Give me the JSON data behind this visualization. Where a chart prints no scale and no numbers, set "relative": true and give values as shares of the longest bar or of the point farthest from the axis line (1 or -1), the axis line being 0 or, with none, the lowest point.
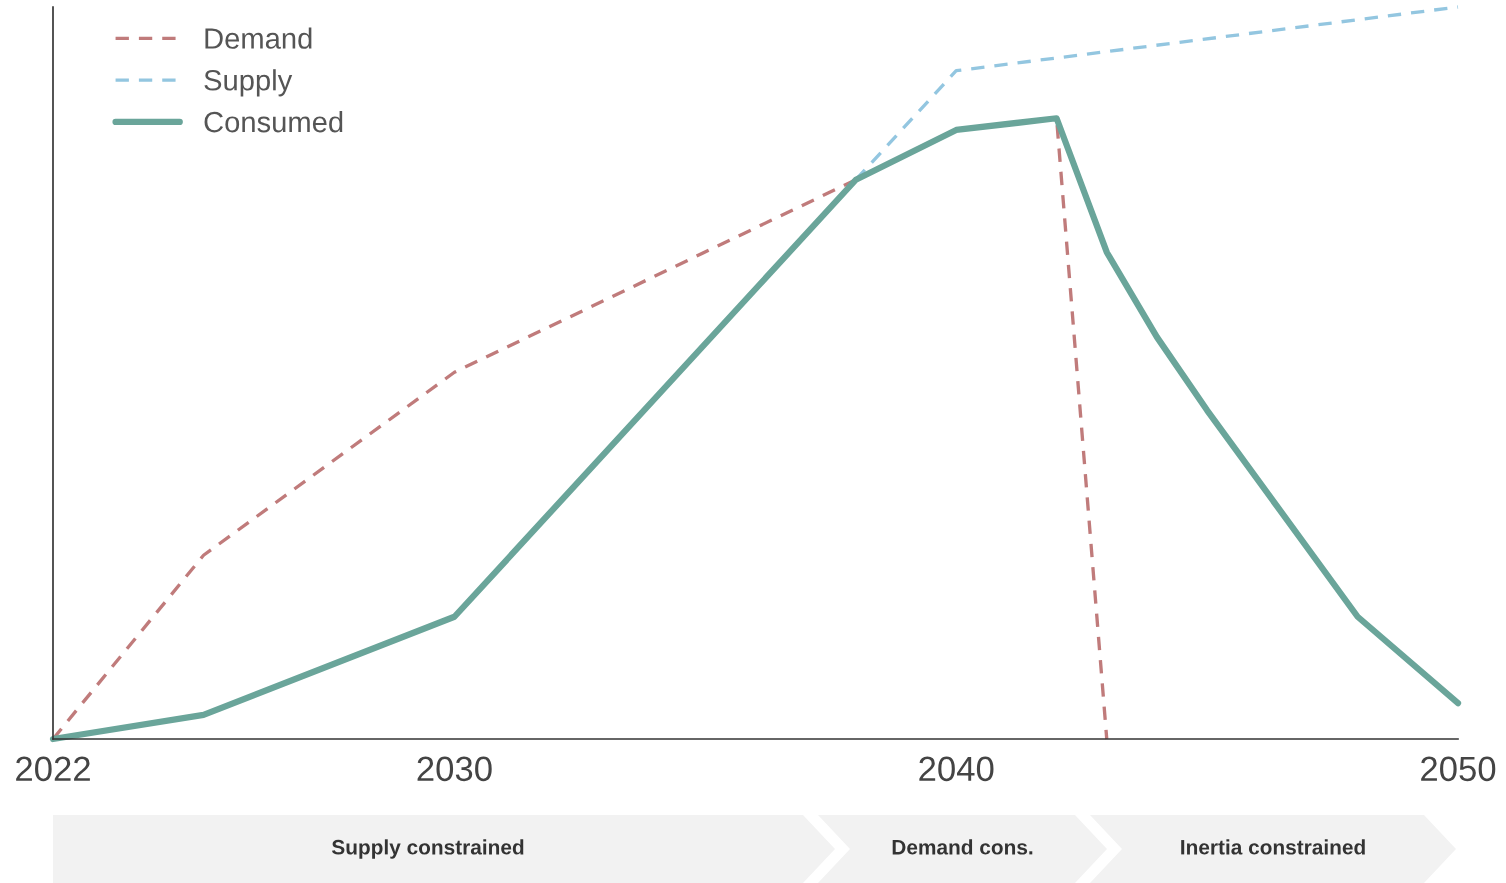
{
  "chart_data": {
    "type": "line",
    "relative": true,
    "xlim": [
      2022,
      2050
    ],
    "xticks": [
      2022,
      2030,
      2040,
      2050
    ],
    "legend": "top left",
    "grid": false,
    "series": [
      {
        "name": "Demand",
        "color": "#c07b7b",
        "line_style": "dashed",
        "x": [
          2022,
          2025,
          2030,
          2038,
          2040,
          2042,
          2043
        ],
        "values": [
          0,
          0.251,
          0.501,
          0.764,
          0.832,
          0.848,
          0
        ]
      },
      {
        "name": "Supply",
        "color": "#93c6e0",
        "line_style": "dashed",
        "x": [
          2038,
          2040,
          2050
        ],
        "values": [
          0.764,
          0.913,
          1.0
        ]
      },
      {
        "name": "Consumed",
        "color": "#6aa59a",
        "line_style": "solid",
        "x": [
          2022,
          2025,
          2030,
          2038,
          2040,
          2042,
          2043,
          2044,
          2045,
          2048,
          2050
        ],
        "values": [
          0,
          0.033,
          0.167,
          0.764,
          0.832,
          0.848,
          0.665,
          0.549,
          0.449,
          0.167,
          0.049
        ]
      }
    ],
    "annotations": [
      "Supply constrained",
      "Demand cons.",
      "Inertia constrained"
    ]
  }
}
